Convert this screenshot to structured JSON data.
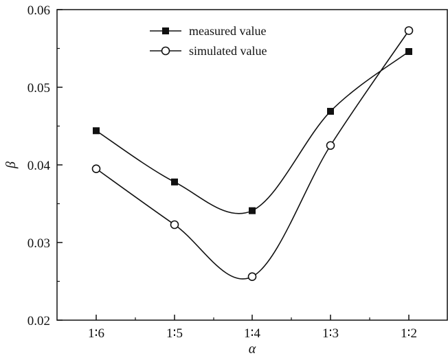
{
  "chart_data": {
    "type": "line",
    "xlabel": "α",
    "ylabel": "β",
    "categories": [
      "1∶6",
      "1∶5",
      "1∶4",
      "1∶3",
      "1∶2"
    ],
    "ylim": [
      0.02,
      0.06
    ],
    "yticks": [
      "0.02",
      "0.03",
      "0.04",
      "0.05",
      "0.06"
    ],
    "grid": false,
    "legend_position": "top-center",
    "smooth": true,
    "series": [
      {
        "name": "measured value",
        "marker": "filled-square",
        "values": [
          0.0444,
          0.0378,
          0.0341,
          0.0469,
          0.0546
        ]
      },
      {
        "name": "simulated value",
        "marker": "open-circle",
        "values": [
          0.0395,
          0.0323,
          0.0256,
          0.0425,
          0.0573
        ]
      }
    ],
    "colors": {
      "line": "#111111",
      "marker_fill": "#111111",
      "open_marker_fill": "#ffffff"
    }
  }
}
